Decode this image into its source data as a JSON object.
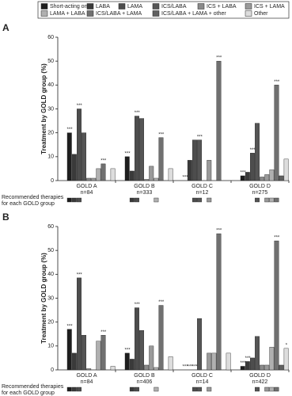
{
  "legend_source": 0,
  "chart_data": [
    {
      "type": "bar",
      "panel": "A",
      "y_label": "Treatment by GOLD group (%)",
      "categories": [
        "GOLD A",
        "GOLD B",
        "GOLD C",
        "GOLD D"
      ],
      "n_labels": [
        "n=84",
        "n=333",
        "n=12",
        "n=275"
      ],
      "ylim": [
        0,
        60
      ],
      "yticks": [
        0,
        10,
        20,
        30,
        40,
        50,
        60
      ],
      "recommended_label": [
        "Recommended therapies",
        "for each GOLD group"
      ],
      "recommended_therapies": [
        [
          "Short-acting only",
          "LABA",
          "LAMA"
        ],
        [
          "LABA",
          "LAMA",
          "LAMA + LABA"
        ],
        [
          "ICS/LABA",
          "LAMA",
          "ICS + LAMA"
        ],
        [
          "ICS/LABA",
          "LAMA + LABA",
          "ICS + LAMA",
          "ICS/LABA + LAMA"
        ]
      ],
      "series": [
        {
          "name": "Short-acting only",
          "color": "#1e1e1e",
          "values": [
            20,
            10,
            0,
            2
          ],
          "significance": [
            "***",
            "***",
            "***",
            "***"
          ]
        },
        {
          "name": "LABA",
          "color": "#3a3a3a",
          "values": [
            11,
            4,
            8.5,
            3.5
          ],
          "significance": [
            null,
            null,
            null,
            null
          ]
        },
        {
          "name": "LAMA",
          "color": "#4d4d4d",
          "values": [
            30,
            27,
            17,
            11.5
          ],
          "significance": [
            "***",
            "***",
            null,
            "***"
          ]
        },
        {
          "name": "ICS/LABA",
          "color": "#555555",
          "values": [
            20,
            26,
            17,
            24
          ],
          "significance": [
            null,
            null,
            "***",
            null
          ]
        },
        {
          "name": "ICS + LABA",
          "color": "#8a8a8a",
          "values": [
            1,
            0.5,
            0,
            1.5
          ],
          "significance": [
            null,
            null,
            null,
            null
          ]
        },
        {
          "name": "ICS + LAMA",
          "color": "#9a9a9a",
          "values": [
            1,
            6,
            8.5,
            2.5
          ],
          "significance": [
            null,
            null,
            null,
            null
          ]
        },
        {
          "name": "LAMA + LABA",
          "color": "#b0b0b0",
          "values": [
            5,
            1,
            0,
            4.5
          ],
          "significance": [
            null,
            null,
            null,
            null
          ]
        },
        {
          "name": "ICS/LABA + LAMA",
          "color": "#707070",
          "values": [
            7,
            18,
            50,
            40
          ],
          "significance": [
            "***",
            "***",
            "***",
            "***"
          ]
        },
        {
          "name": "ICS/LABA + LAMA + other",
          "color": "#606060",
          "values": [
            0,
            0,
            0,
            2
          ],
          "significance": [
            null,
            null,
            null,
            null
          ]
        },
        {
          "name": "Other",
          "color": "#dddddd",
          "values": [
            5,
            5,
            0,
            9
          ],
          "significance": [
            null,
            null,
            null,
            null
          ]
        }
      ]
    },
    {
      "type": "bar",
      "panel": "B",
      "y_label": "Treatment by GOLD group (%)",
      "categories": [
        "GOLD A",
        "GOLD B",
        "GOLD C",
        "GOLD D"
      ],
      "n_labels": [
        "n=84",
        "n=406",
        "n=14",
        "n=422"
      ],
      "ylim": [
        0,
        60
      ],
      "yticks": [
        0,
        10,
        20,
        30,
        40,
        50,
        60
      ],
      "recommended_label": [
        "Recommended therapies",
        "for each GOLD group"
      ],
      "recommended_therapies": [
        [
          "Short-acting only",
          "LABA",
          "LAMA"
        ],
        [
          "LABA",
          "LAMA",
          "LAMA + LABA"
        ],
        [
          "ICS/LABA",
          "LAMA",
          "ICS + LAMA"
        ],
        [
          "ICS/LABA",
          "LAMA + LABA",
          "ICS + LAMA",
          "ICS/LABA + LAMA"
        ]
      ],
      "series": [
        {
          "name": "Short-acting only",
          "color": "#1e1e1e",
          "values": [
            17,
            7,
            0,
            1.5
          ],
          "significance": [
            "***",
            "***",
            "***",
            "***"
          ]
        },
        {
          "name": "LABA",
          "color": "#3a3a3a",
          "values": [
            7,
            4.5,
            0,
            3.5
          ],
          "significance": [
            null,
            null,
            "***",
            "***"
          ]
        },
        {
          "name": "LAMA",
          "color": "#4d4d4d",
          "values": [
            38.5,
            26,
            0,
            5
          ],
          "significance": [
            "***",
            "***",
            "***",
            null
          ]
        },
        {
          "name": "ICS/LABA",
          "color": "#555555",
          "values": [
            14.5,
            16.5,
            21.5,
            14
          ],
          "significance": [
            null,
            null,
            null,
            null
          ]
        },
        {
          "name": "ICS + LABA",
          "color": "#8a8a8a",
          "values": [
            0.5,
            2,
            0,
            2
          ],
          "significance": [
            null,
            null,
            null,
            null
          ]
        },
        {
          "name": "ICS + LAMA",
          "color": "#9a9a9a",
          "values": [
            0,
            10,
            7,
            2
          ],
          "significance": [
            null,
            null,
            null,
            null
          ]
        },
        {
          "name": "LAMA + LABA",
          "color": "#b0b0b0",
          "values": [
            12,
            1,
            7,
            9.5
          ],
          "significance": [
            null,
            null,
            null,
            null
          ]
        },
        {
          "name": "ICS/LABA + LAMA",
          "color": "#707070",
          "values": [
            14.5,
            27,
            57,
            54
          ],
          "significance": [
            "***",
            "***",
            "***",
            "***"
          ]
        },
        {
          "name": "ICS/LABA + LAMA + other",
          "color": "#606060",
          "values": [
            0,
            0,
            0,
            2
          ],
          "significance": [
            null,
            null,
            null,
            null
          ]
        },
        {
          "name": "Other",
          "color": "#dddddd",
          "values": [
            1.5,
            5.5,
            7,
            9
          ],
          "significance": [
            null,
            null,
            null,
            "*"
          ]
        }
      ]
    }
  ]
}
